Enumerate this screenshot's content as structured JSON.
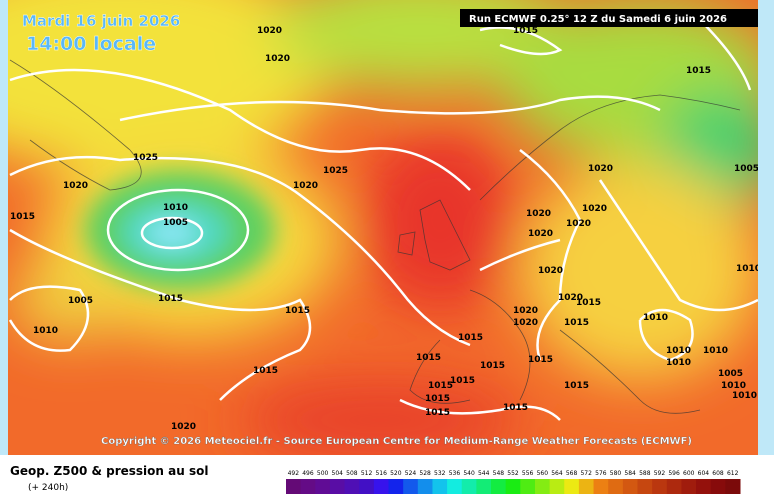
{
  "header": {
    "date": "Mardi 16 juin 2026",
    "time": "14:00 locale",
    "run": "Run ECMWF 0.25° 12 Z du Samedi 6 juin 2026"
  },
  "map": {
    "isobar_labels": [
      "1020",
      "1020",
      "1015",
      "1015",
      "1025",
      "1020",
      "1025",
      "1020",
      "1010",
      "1005",
      "1015",
      "1005",
      "1015",
      "1010",
      "1015",
      "1020",
      "1020",
      "1020",
      "1020",
      "1020",
      "1020",
      "1005",
      "1010",
      "1020",
      "1015",
      "1020",
      "1020",
      "1015",
      "1010",
      "1015",
      "1015",
      "1015",
      "1015",
      "1015",
      "1015",
      "1015",
      "1015",
      "1010",
      "1010",
      "1010",
      "1005",
      "1010",
      "1015",
      "1015",
      "1015",
      "1020",
      "1010"
    ],
    "copyright": "Copyright © 2026 Meteociel.fr - Source European Centre for Medium-Range Weather Forecasts (ECMWF)"
  },
  "footer": {
    "title": "Geop. Z500 & pression au sol",
    "lead": "(+ 240h)",
    "scale": [
      492,
      496,
      500,
      504,
      508,
      512,
      516,
      520,
      524,
      528,
      532,
      536,
      540,
      544,
      548,
      552,
      556,
      560,
      564,
      568,
      572,
      576,
      580,
      584,
      588,
      592,
      596,
      600,
      604,
      608,
      612
    ]
  }
}
